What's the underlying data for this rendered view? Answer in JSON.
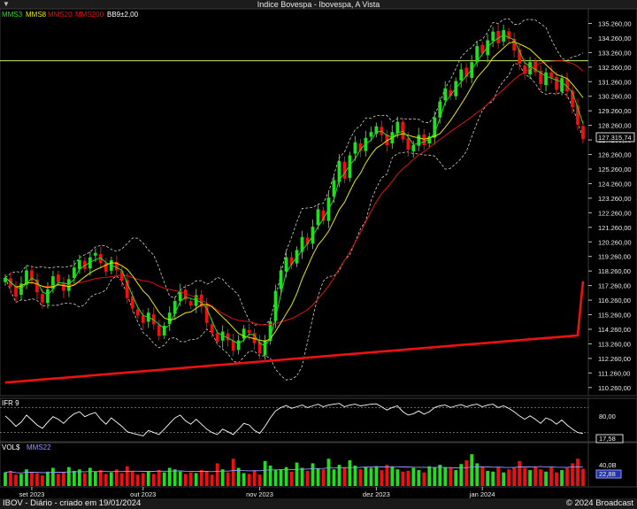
{
  "window": {
    "title": "Indice Bovespa - Ibovespa, A Vista",
    "icon": "chevron-down-icon"
  },
  "footer": {
    "left": "IBOV - Diário - criado em 19/01/2024",
    "right": "© 2024 Broadcast"
  },
  "colors": {
    "up": "#22dd22",
    "down": "#ee1111",
    "mms3": "#22dd22",
    "mms8": "#e8e800",
    "mms20": "#dd1111",
    "mms200": "#ee1111",
    "bb": "#cfcfcf",
    "hline": "#c8f060",
    "ifr": "#ffffff"
  },
  "chart_data": [
    {
      "type": "candlestick",
      "title": "Indice Bovespa - Ibovespa, A Vista",
      "legend": [
        {
          "label": "MMS3",
          "color": "#22dd22"
        },
        {
          "label": "MMS8",
          "color": "#e8e800"
        },
        {
          "label": "MMS20",
          "color": "#dd1111"
        },
        {
          "label": "MMS200",
          "color": "#ee1111"
        },
        {
          "label": "BB9±2,00",
          "color": "#ffffff"
        }
      ],
      "y_ticks": [
        "135.260,00",
        "134.260,00",
        "133.260,00",
        "132.260,00",
        "131.260,00",
        "130.260,00",
        "129.260,00",
        "128.260,00",
        "127.260,00",
        "126.260,00",
        "125.260,00",
        "124.260,00",
        "123.260,00",
        "122.260,00",
        "121.260,00",
        "120.260,00",
        "119.260,00",
        "118.260,00",
        "117.260,00",
        "116.260,00",
        "115.260,00",
        "114.260,00",
        "113.260,00",
        "112.260,00",
        "111.260,00",
        "110.260,00"
      ],
      "ylim": [
        109700,
        136260
      ],
      "last_value_label": "127.315,74",
      "last_value": 127315.74,
      "horizontal_line": 132700,
      "close": [
        117800,
        117200,
        116500,
        117400,
        118300,
        117600,
        116800,
        116100,
        117000,
        117900,
        117500,
        116900,
        117700,
        118500,
        119000,
        118400,
        119200,
        119500,
        118800,
        118200,
        119000,
        118300,
        117600,
        116400,
        115700,
        115200,
        114700,
        115400,
        114600,
        113800,
        114500,
        115400,
        116200,
        116900,
        116300,
        115900,
        116600,
        115800,
        114700,
        114000,
        113400,
        114100,
        113500,
        112800,
        113500,
        114300,
        114000,
        113300,
        112600,
        113500,
        114800,
        116900,
        118300,
        119200,
        118700,
        119700,
        120600,
        120100,
        121300,
        122500,
        121700,
        123300,
        124500,
        125800,
        124600,
        126200,
        127100,
        126500,
        127400,
        127800,
        128200,
        127600,
        126900,
        127800,
        128500,
        127300,
        126600,
        126900,
        127600,
        126900,
        127500,
        128800,
        129900,
        130800,
        130300,
        131300,
        132100,
        131600,
        132600,
        133700,
        133200,
        134100,
        134700,
        133900,
        134800,
        134200,
        133400,
        132500,
        131800,
        132600,
        131900,
        131100,
        131900,
        131500,
        130700,
        131500,
        130600,
        129500,
        128300,
        127316
      ],
      "sma200": [
        110600,
        110630,
        110660,
        110690,
        110720,
        110750,
        110780,
        110810,
        110840,
        110870,
        110900,
        110930,
        110960,
        110990,
        111020,
        111050,
        111080,
        111110,
        111140,
        111170,
        111200,
        111230,
        111260,
        111290,
        111320,
        111350,
        111380,
        111410,
        111440,
        111470,
        111500,
        111530,
        111560,
        111590,
        111620,
        111650,
        111680,
        111710,
        111740,
        111770,
        111800,
        111830,
        111860,
        111890,
        111920,
        111950,
        111980,
        112010,
        112040,
        112070,
        112100,
        112130,
        112160,
        112190,
        112220,
        112250,
        112280,
        112310,
        112340,
        112370,
        112400,
        112430,
        112460,
        112490,
        112520,
        112550,
        112580,
        112610,
        112640,
        112670,
        112700,
        112730,
        112760,
        112790,
        112820,
        112850,
        112880,
        112910,
        112940,
        112970,
        113000,
        113030,
        113060,
        113090,
        113120,
        113150,
        113180,
        113210,
        113240,
        113270,
        113300,
        113330,
        113360,
        113390,
        113420,
        113450,
        113480,
        113510,
        113540,
        113570,
        113600,
        113630,
        113660,
        113690,
        113720,
        113750,
        113780,
        113810,
        113840,
        117560
      ],
      "x_ticks": [
        {
          "label": "set 2023",
          "index": 5
        },
        {
          "label": "out 2023",
          "index": 26
        },
        {
          "label": "nov 2023",
          "index": 48
        },
        {
          "label": "dez 2023",
          "index": 70
        },
        {
          "label": "jan 2024",
          "index": 90
        }
      ]
    },
    {
      "type": "line",
      "title": "IFR 9",
      "ylim": [
        0,
        100
      ],
      "y_ticks": [
        "80,00"
      ],
      "last_value_label": "17,58",
      "values": [
        60,
        48,
        35,
        45,
        62,
        50,
        38,
        30,
        45,
        58,
        52,
        42,
        55,
        65,
        70,
        58,
        64,
        68,
        52,
        40,
        55,
        45,
        35,
        22,
        18,
        15,
        12,
        25,
        20,
        15,
        28,
        42,
        55,
        62,
        48,
        40,
        52,
        40,
        28,
        20,
        15,
        28,
        22,
        15,
        28,
        42,
        38,
        25,
        18,
        35,
        55,
        72,
        80,
        85,
        78,
        82,
        86,
        80,
        84,
        88,
        82,
        86,
        88,
        90,
        82,
        86,
        88,
        84,
        86,
        88,
        89,
        82,
        74,
        80,
        84,
        70,
        62,
        65,
        72,
        64,
        70,
        80,
        84,
        86,
        80,
        84,
        87,
        82,
        86,
        88,
        82,
        86,
        88,
        80,
        84,
        78,
        70,
        60,
        52,
        60,
        52,
        42,
        55,
        50,
        40,
        50,
        38,
        28,
        20,
        17.58
      ]
    },
    {
      "type": "bar",
      "title": "VOL$",
      "legend": [
        {
          "label": "MMS22",
          "color": "#9999ff"
        }
      ],
      "y_ticks": [
        "40,0B"
      ],
      "ylim": [
        0,
        55
      ],
      "last_value_label": "22,88",
      "values": [
        18,
        20,
        15,
        16,
        22,
        18,
        17,
        14,
        19,
        24,
        16,
        18,
        25,
        20,
        22,
        17,
        24,
        19,
        21,
        16,
        18,
        22,
        17,
        26,
        20,
        15,
        17,
        19,
        16,
        21,
        18,
        24,
        22,
        19,
        16,
        18,
        17,
        21,
        20,
        15,
        30,
        22,
        18,
        36,
        24,
        17,
        16,
        20,
        15,
        33,
        27,
        21,
        22,
        25,
        19,
        31,
        24,
        20,
        30,
        23,
        22,
        36,
        22,
        28,
        24,
        34,
        27,
        22,
        25,
        24,
        26,
        21,
        28,
        26,
        22,
        19,
        20,
        24,
        21,
        18,
        26,
        24,
        28,
        25,
        24,
        21,
        29,
        34,
        42,
        30,
        26,
        20,
        19,
        25,
        18,
        22,
        24,
        33,
        24,
        21,
        26,
        22,
        19,
        25,
        18,
        21,
        24,
        30,
        36,
        22.88
      ]
    }
  ]
}
